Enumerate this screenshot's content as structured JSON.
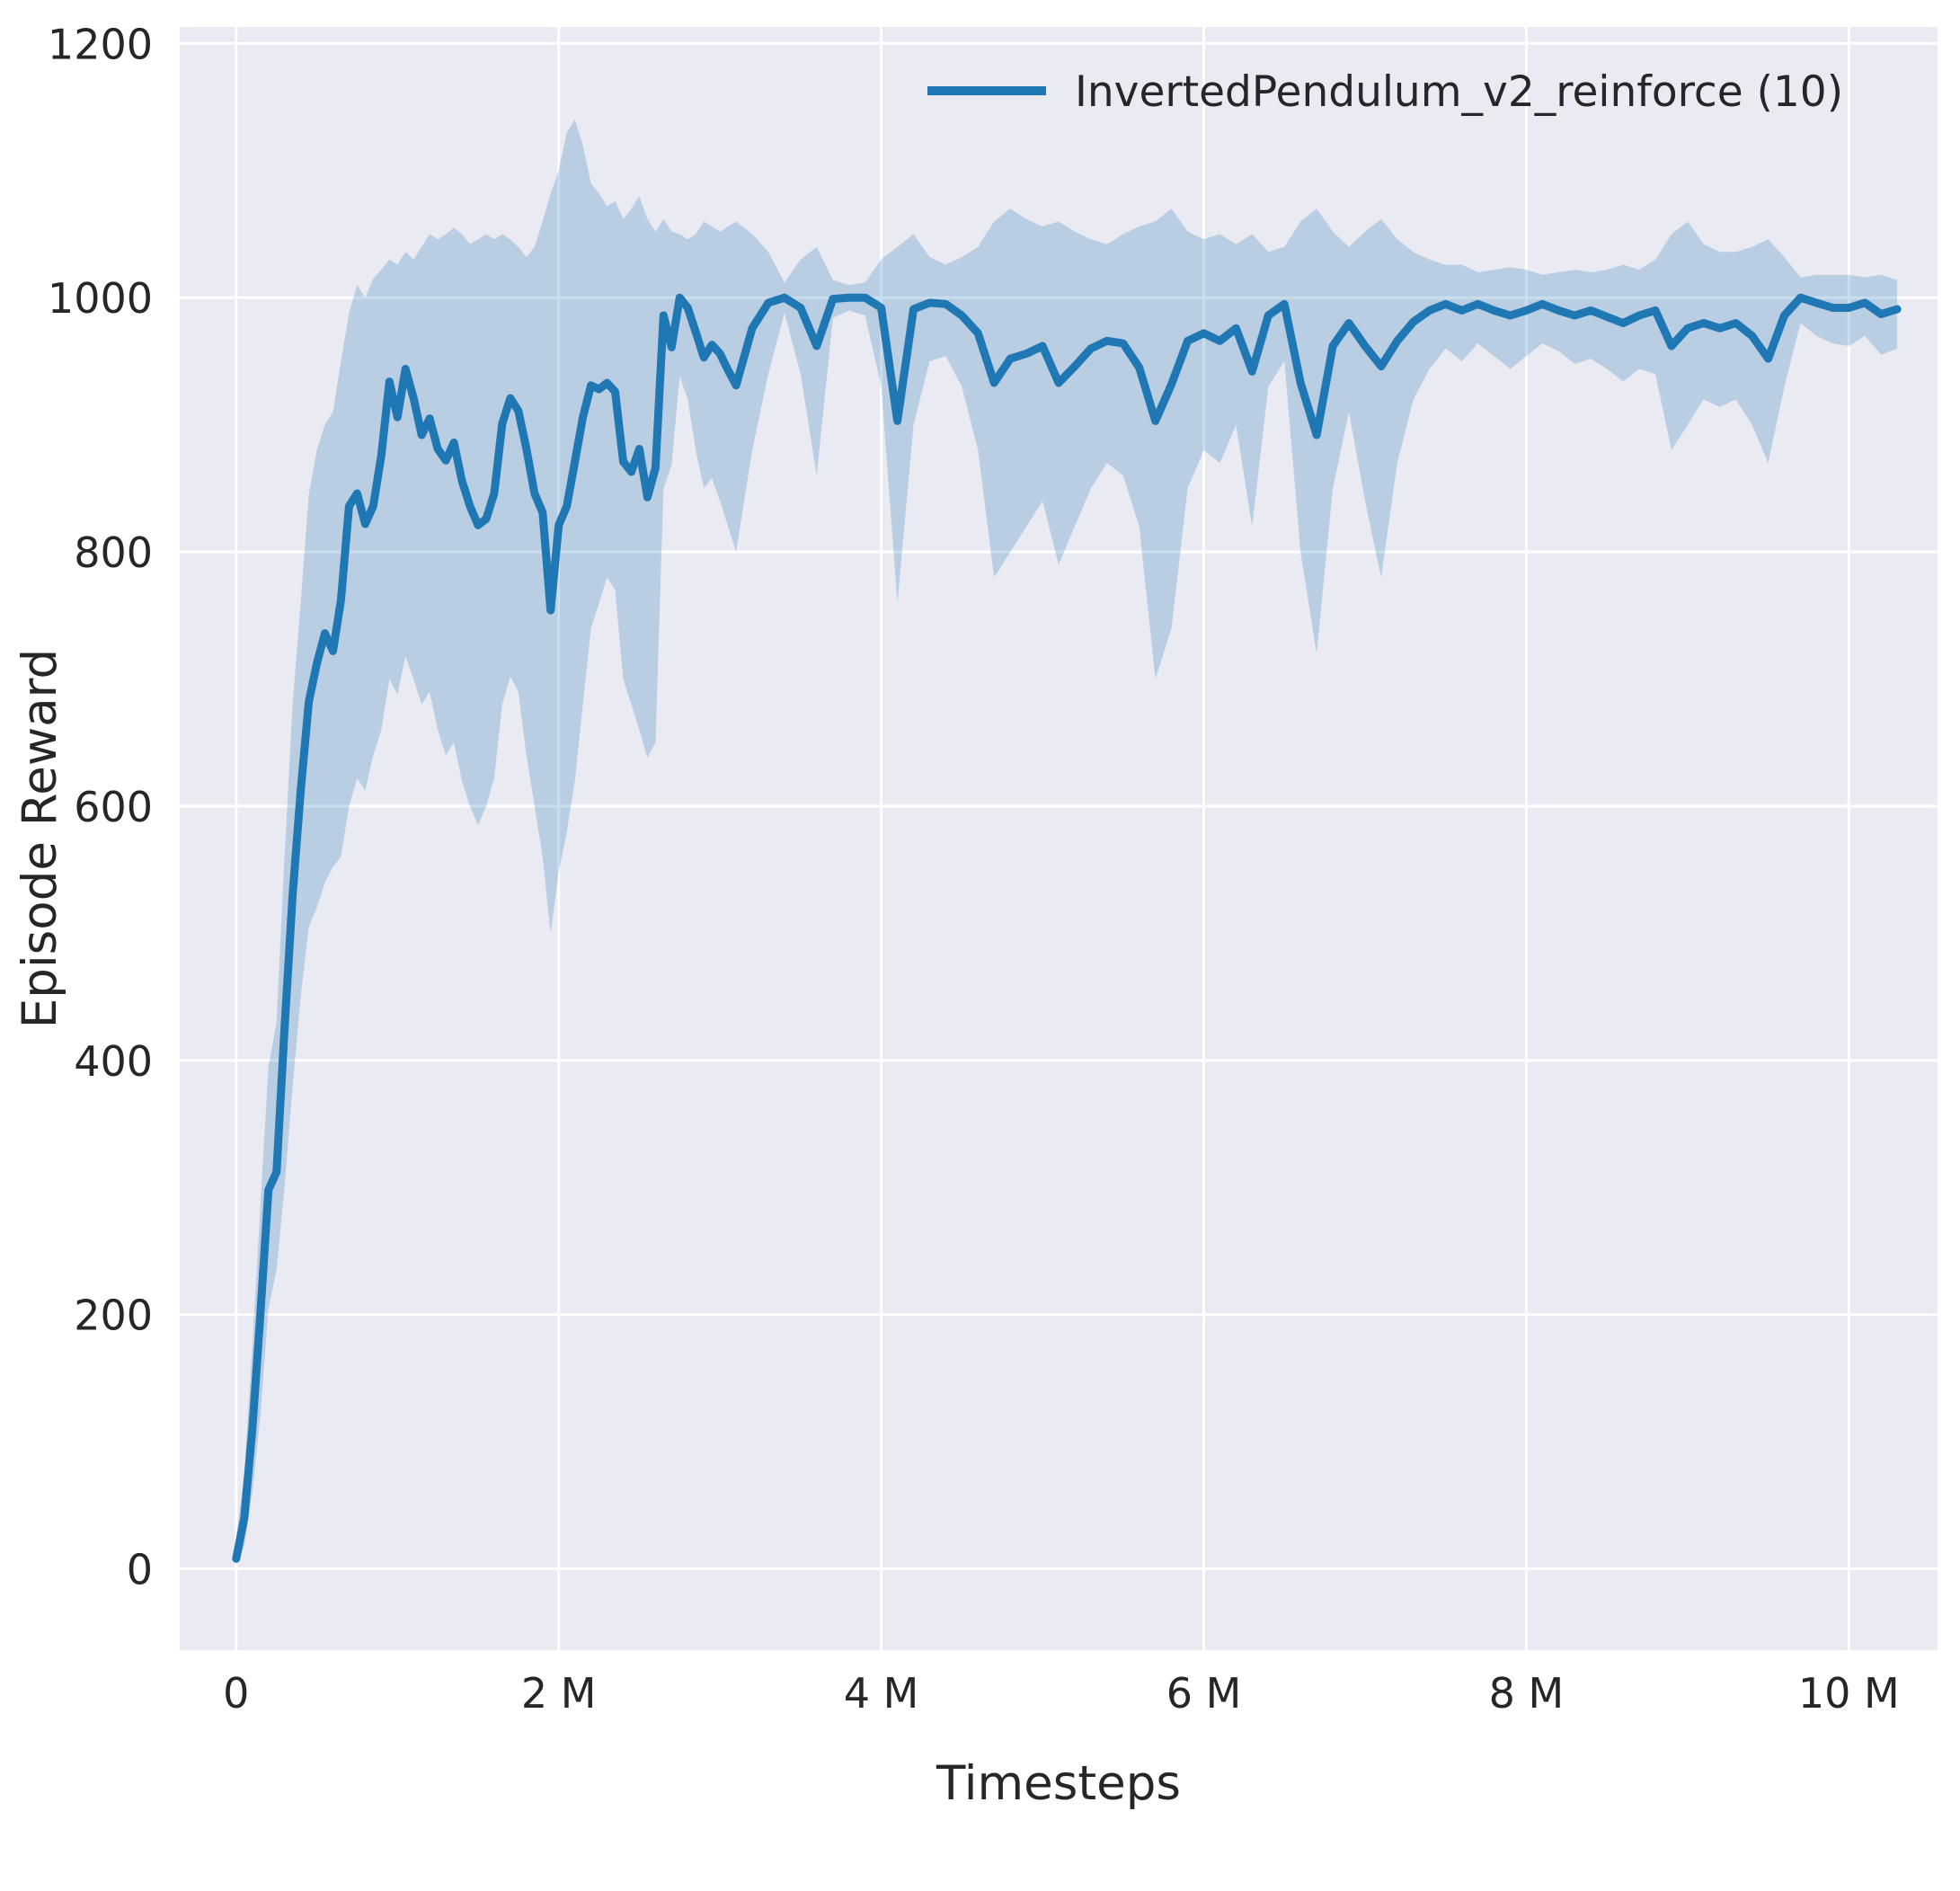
{
  "chart_data": {
    "type": "line",
    "title": "",
    "xlabel": "Timesteps",
    "ylabel": "Episode Reward",
    "x_unit": "millions of timesteps",
    "xlim": [
      -0.35,
      10.55
    ],
    "ylim": [
      -64,
      1213
    ],
    "grid": true,
    "legend_position": "upper center",
    "x_ticks": [
      {
        "value": 0,
        "label": "0"
      },
      {
        "value": 2,
        "label": "2 M"
      },
      {
        "value": 4,
        "label": "4 M"
      },
      {
        "value": 6,
        "label": "6 M"
      },
      {
        "value": 8,
        "label": "8 M"
      },
      {
        "value": 10,
        "label": "10 M"
      }
    ],
    "y_ticks": [
      {
        "value": 0,
        "label": "0"
      },
      {
        "value": 200,
        "label": "200"
      },
      {
        "value": 400,
        "label": "400"
      },
      {
        "value": 600,
        "label": "600"
      },
      {
        "value": 800,
        "label": "800"
      },
      {
        "value": 1000,
        "label": "1000"
      },
      {
        "value": 1200,
        "label": "1200"
      }
    ],
    "colors": {
      "background": "#eaeaf2",
      "grid": "#ffffff",
      "text": "#262626"
    },
    "series": [
      {
        "name": "InvertedPendulum_v2_reinforce (10)",
        "color": "#1f77b4",
        "band_color": "rgba(31,119,180,0.24)",
        "points_format": [
          "x_millions",
          "mean",
          "band_low",
          "band_high"
        ],
        "points": [
          [
            0.0,
            8,
            3,
            25
          ],
          [
            0.05,
            40,
            18,
            75
          ],
          [
            0.1,
            110,
            60,
            175
          ],
          [
            0.15,
            200,
            120,
            285
          ],
          [
            0.2,
            298,
            205,
            395
          ],
          [
            0.25,
            312,
            235,
            430
          ],
          [
            0.3,
            425,
            300,
            560
          ],
          [
            0.35,
            530,
            380,
            680
          ],
          [
            0.4,
            612,
            450,
            760
          ],
          [
            0.45,
            682,
            505,
            845
          ],
          [
            0.5,
            712,
            520,
            880
          ],
          [
            0.55,
            736,
            540,
            900
          ],
          [
            0.6,
            722,
            552,
            910
          ],
          [
            0.65,
            762,
            560,
            950
          ],
          [
            0.7,
            836,
            600,
            988
          ],
          [
            0.75,
            846,
            622,
            1010
          ],
          [
            0.8,
            822,
            612,
            1000
          ],
          [
            0.85,
            836,
            640,
            1015
          ],
          [
            0.9,
            876,
            660,
            1022
          ],
          [
            0.95,
            934,
            700,
            1030
          ],
          [
            1.0,
            906,
            688,
            1026
          ],
          [
            1.05,
            944,
            718,
            1036
          ],
          [
            1.1,
            921,
            700,
            1030
          ],
          [
            1.15,
            892,
            680,
            1040
          ],
          [
            1.2,
            905,
            690,
            1050
          ],
          [
            1.25,
            881,
            660,
            1046
          ],
          [
            1.3,
            872,
            640,
            1050
          ],
          [
            1.35,
            886,
            650,
            1055
          ],
          [
            1.4,
            856,
            620,
            1050
          ],
          [
            1.45,
            836,
            600,
            1042
          ],
          [
            1.5,
            821,
            585,
            1046
          ],
          [
            1.55,
            826,
            600,
            1050
          ],
          [
            1.6,
            846,
            622,
            1046
          ],
          [
            1.65,
            901,
            680,
            1050
          ],
          [
            1.7,
            921,
            702,
            1046
          ],
          [
            1.75,
            911,
            690,
            1040
          ],
          [
            1.8,
            881,
            640,
            1032
          ],
          [
            1.85,
            846,
            600,
            1040
          ],
          [
            1.9,
            831,
            560,
            1060
          ],
          [
            1.95,
            754,
            500,
            1082
          ],
          [
            2.0,
            821,
            548,
            1100
          ],
          [
            2.05,
            836,
            580,
            1130
          ],
          [
            2.1,
            871,
            620,
            1140
          ],
          [
            2.15,
            906,
            680,
            1120
          ],
          [
            2.2,
            931,
            740,
            1090
          ],
          [
            2.25,
            928,
            760,
            1082
          ],
          [
            2.3,
            933,
            780,
            1072
          ],
          [
            2.35,
            926,
            770,
            1076
          ],
          [
            2.4,
            871,
            700,
            1062
          ],
          [
            2.45,
            863,
            680,
            1070
          ],
          [
            2.5,
            881,
            660,
            1080
          ],
          [
            2.55,
            843,
            638,
            1062
          ],
          [
            2.6,
            866,
            650,
            1052
          ],
          [
            2.65,
            986,
            850,
            1062
          ],
          [
            2.7,
            961,
            868,
            1052
          ],
          [
            2.75,
            1000,
            938,
            1050
          ],
          [
            2.8,
            992,
            920,
            1046
          ],
          [
            2.85,
            973,
            880,
            1050
          ],
          [
            2.9,
            953,
            850,
            1060
          ],
          [
            2.95,
            963,
            858,
            1056
          ],
          [
            3.0,
            956,
            840,
            1052
          ],
          [
            3.05,
            943,
            820,
            1056
          ],
          [
            3.1,
            931,
            800,
            1060
          ],
          [
            3.2,
            976,
            880,
            1050
          ],
          [
            3.3,
            996,
            940,
            1036
          ],
          [
            3.4,
            1000,
            988,
            1012
          ],
          [
            3.5,
            992,
            940,
            1030
          ],
          [
            3.6,
            962,
            860,
            1040
          ],
          [
            3.7,
            999,
            984,
            1014
          ],
          [
            3.8,
            1000,
            990,
            1010
          ],
          [
            3.9,
            1000,
            986,
            1012
          ],
          [
            4.0,
            992,
            930,
            1030
          ],
          [
            4.1,
            903,
            760,
            1040
          ],
          [
            4.2,
            991,
            900,
            1050
          ],
          [
            4.3,
            996,
            950,
            1032
          ],
          [
            4.4,
            995,
            954,
            1026
          ],
          [
            4.5,
            986,
            930,
            1032
          ],
          [
            4.6,
            972,
            880,
            1040
          ],
          [
            4.7,
            933,
            780,
            1060
          ],
          [
            4.8,
            952,
            800,
            1070
          ],
          [
            4.9,
            956,
            820,
            1062
          ],
          [
            5.0,
            962,
            840,
            1056
          ],
          [
            5.1,
            933,
            790,
            1060
          ],
          [
            5.2,
            946,
            820,
            1052
          ],
          [
            5.3,
            960,
            850,
            1046
          ],
          [
            5.4,
            966,
            870,
            1042
          ],
          [
            5.5,
            964,
            860,
            1050
          ],
          [
            5.6,
            945,
            820,
            1056
          ],
          [
            5.7,
            903,
            700,
            1060
          ],
          [
            5.8,
            932,
            740,
            1070
          ],
          [
            5.9,
            966,
            850,
            1052
          ],
          [
            6.0,
            972,
            880,
            1046
          ],
          [
            6.1,
            966,
            870,
            1050
          ],
          [
            6.2,
            976,
            900,
            1042
          ],
          [
            6.3,
            942,
            820,
            1050
          ],
          [
            6.4,
            986,
            930,
            1036
          ],
          [
            6.5,
            995,
            950,
            1040
          ],
          [
            6.6,
            933,
            800,
            1060
          ],
          [
            6.7,
            892,
            720,
            1070
          ],
          [
            6.8,
            962,
            850,
            1052
          ],
          [
            6.9,
            980,
            910,
            1040
          ],
          [
            7.0,
            962,
            840,
            1052
          ],
          [
            7.1,
            946,
            780,
            1062
          ],
          [
            7.2,
            966,
            870,
            1046
          ],
          [
            7.3,
            981,
            920,
            1036
          ],
          [
            7.4,
            990,
            944,
            1030
          ],
          [
            7.5,
            995,
            960,
            1026
          ],
          [
            7.6,
            990,
            950,
            1026
          ],
          [
            7.7,
            995,
            964,
            1020
          ],
          [
            7.8,
            990,
            954,
            1022
          ],
          [
            7.9,
            986,
            944,
            1024
          ],
          [
            8.0,
            990,
            954,
            1022
          ],
          [
            8.1,
            995,
            964,
            1018
          ],
          [
            8.2,
            990,
            958,
            1020
          ],
          [
            8.3,
            986,
            948,
            1022
          ],
          [
            8.4,
            990,
            952,
            1020
          ],
          [
            8.5,
            985,
            944,
            1022
          ],
          [
            8.6,
            980,
            934,
            1026
          ],
          [
            8.7,
            986,
            944,
            1022
          ],
          [
            8.8,
            990,
            940,
            1030
          ],
          [
            8.9,
            962,
            880,
            1050
          ],
          [
            9.0,
            976,
            900,
            1060
          ],
          [
            9.1,
            980,
            920,
            1042
          ],
          [
            9.2,
            976,
            914,
            1036
          ],
          [
            9.3,
            980,
            920,
            1036
          ],
          [
            9.4,
            970,
            900,
            1040
          ],
          [
            9.5,
            952,
            870,
            1046
          ],
          [
            9.6,
            986,
            930,
            1032
          ],
          [
            9.7,
            1000,
            980,
            1016
          ],
          [
            9.8,
            996,
            970,
            1018
          ],
          [
            9.9,
            992,
            964,
            1018
          ],
          [
            10.0,
            992,
            962,
            1018
          ],
          [
            10.1,
            996,
            970,
            1016
          ],
          [
            10.2,
            987,
            955,
            1018
          ],
          [
            10.3,
            991,
            960,
            1014
          ]
        ]
      }
    ]
  }
}
